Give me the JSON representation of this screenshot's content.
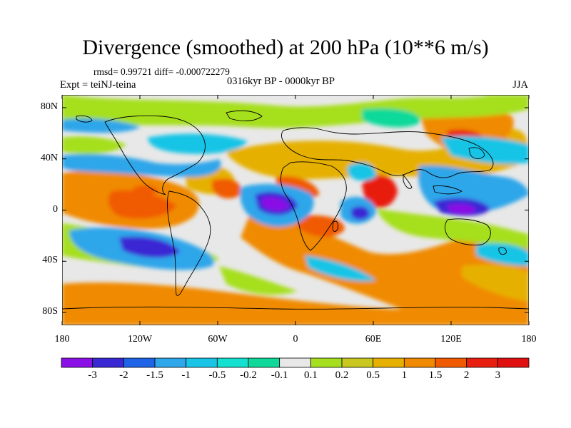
{
  "title": "Divergence (smoothed) at 200 hPa (10**6 m/s)",
  "stats": "rmsd= 0.99721 diff= -0.000722279",
  "experiment": "Expt = teiNJ-teina",
  "period": "0316kyr BP - 0000kyr BP",
  "season": "JJA",
  "map": {
    "lat_range": [
      -90,
      90
    ],
    "lon_range": [
      -180,
      180
    ],
    "lat_labels": [
      "80N",
      "40N",
      "0",
      "40S",
      "80S"
    ],
    "lat_values": [
      80,
      40,
      0,
      -40,
      -80
    ],
    "lon_labels": [
      "180",
      "120W",
      "60W",
      "0",
      "60E",
      "120E",
      "180"
    ],
    "lon_values": [
      -180,
      -120,
      -60,
      0,
      60,
      120,
      180
    ]
  },
  "colorbar": {
    "labels": [
      "-3",
      "-2",
      "-1.5",
      "-1",
      "-0.5",
      "-0.2",
      "-0.1",
      "0.1",
      "0.2",
      "0.5",
      "1",
      "1.5",
      "2",
      "3"
    ],
    "colors": [
      "#8a10e6",
      "#3a28d4",
      "#1f63e6",
      "#2ea6ea",
      "#19c4e6",
      "#14e0cf",
      "#0fd99a",
      "#e8e8e8",
      "#a6df1f",
      "#c8c820",
      "#e6b000",
      "#f08a00",
      "#f05a00",
      "#e81e10",
      "#e01010"
    ]
  },
  "palette": {
    "background": "#ffffff",
    "neutral": "#e8e8e8",
    "coast": "#000000"
  }
}
